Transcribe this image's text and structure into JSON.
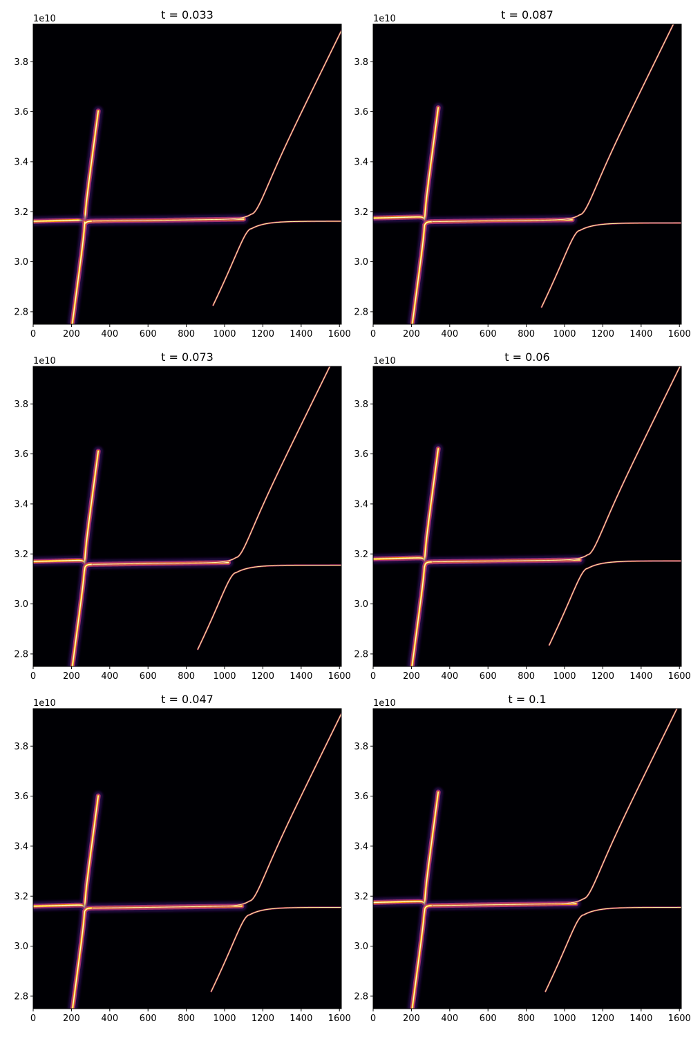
{
  "figure": {
    "colors": {
      "background": "#000004",
      "glow_outer": "#3b0f70",
      "glow_mid": "#b73779",
      "core": "#fcfdbf",
      "bright": "#fb9b06",
      "axis": "#000000"
    }
  },
  "chart_data": [
    {
      "type": "heatmap",
      "title": "t = 0.033",
      "xlim": [
        0,
        1610
      ],
      "ylim": [
        27500000000.0,
        39500000000.0
      ],
      "y_multiplier": "1e10",
      "xticks": [
        0,
        200,
        400,
        600,
        800,
        1000,
        1200,
        1400,
        1600
      ],
      "yticks": [
        2.8,
        3.0,
        3.2,
        3.4,
        3.6,
        3.8
      ],
      "curves": {
        "crossing_k": 270,
        "right_crossing_k": 1140,
        "plateau_upper": 3.167,
        "plateau_lower": 3.162,
        "right_plateau": 3.162,
        "right_lower_start": 2.78
      }
    },
    {
      "type": "heatmap",
      "title": "t = 0.073",
      "xlim": [
        0,
        1610
      ],
      "ylim": [
        27500000000.0,
        39500000000.0
      ],
      "y_multiplier": "1e10",
      "xticks": [
        0,
        200,
        400,
        600,
        800,
        1000,
        1200,
        1400,
        1600
      ],
      "yticks": [
        2.8,
        3.0,
        3.2,
        3.4,
        3.6,
        3.8
      ],
      "curves": {
        "crossing_k": 270,
        "right_crossing_k": 1060,
        "plateau_upper": 3.175,
        "plateau_lower": 3.158,
        "right_plateau": 3.155,
        "right_lower_start": 2.76
      }
    },
    {
      "type": "heatmap",
      "title": "t = 0.047",
      "xlim": [
        0,
        1610
      ],
      "ylim": [
        27500000000.0,
        39500000000.0
      ],
      "y_multiplier": "1e10",
      "xticks": [
        0,
        200,
        400,
        600,
        800,
        1000,
        1200,
        1400,
        1600
      ],
      "yticks": [
        2.8,
        3.0,
        3.2,
        3.4,
        3.6,
        3.8
      ],
      "curves": {
        "crossing_k": 270,
        "right_crossing_k": 1130,
        "plateau_upper": 3.165,
        "plateau_lower": 3.152,
        "right_plateau": 3.155,
        "right_lower_start": 2.88
      }
    },
    {
      "type": "heatmap",
      "title": "t = 0.087",
      "xlim": [
        0,
        1610
      ],
      "ylim": [
        27500000000.0,
        39500000000.0
      ],
      "y_multiplier": "1e10",
      "xticks": [
        0,
        200,
        400,
        600,
        800,
        1000,
        1200,
        1400,
        1600
      ],
      "yticks": [
        2.8,
        3.0,
        3.2,
        3.4,
        3.6,
        3.8
      ],
      "curves": {
        "crossing_k": 270,
        "right_crossing_k": 1080,
        "plateau_upper": 3.18,
        "plateau_lower": 3.16,
        "right_plateau": 3.155,
        "right_lower_start": 2.76
      }
    },
    {
      "type": "heatmap",
      "title": "t = 0.06",
      "xlim": [
        0,
        1610
      ],
      "ylim": [
        27500000000.0,
        39500000000.0
      ],
      "y_multiplier": "1e10",
      "xticks": [
        0,
        200,
        400,
        600,
        800,
        1000,
        1200,
        1400,
        1600
      ],
      "yticks": [
        2.8,
        3.0,
        3.2,
        3.4,
        3.6,
        3.8
      ],
      "curves": {
        "crossing_k": 270,
        "right_crossing_k": 1120,
        "plateau_upper": 3.185,
        "plateau_lower": 3.168,
        "right_plateau": 3.172,
        "right_lower_start": 2.8
      }
    },
    {
      "type": "heatmap",
      "title": "t = 0.1",
      "xlim": [
        0,
        1610
      ],
      "ylim": [
        27500000000.0,
        39500000000.0
      ],
      "y_multiplier": "1e10",
      "xticks": [
        0,
        200,
        400,
        600,
        800,
        1000,
        1200,
        1400,
        1600
      ],
      "yticks": [
        2.8,
        3.0,
        3.2,
        3.4,
        3.6,
        3.8
      ],
      "curves": {
        "crossing_k": 270,
        "right_crossing_k": 1100,
        "plateau_upper": 3.18,
        "plateau_lower": 3.162,
        "right_plateau": 3.155,
        "right_lower_start": 2.76
      }
    }
  ]
}
